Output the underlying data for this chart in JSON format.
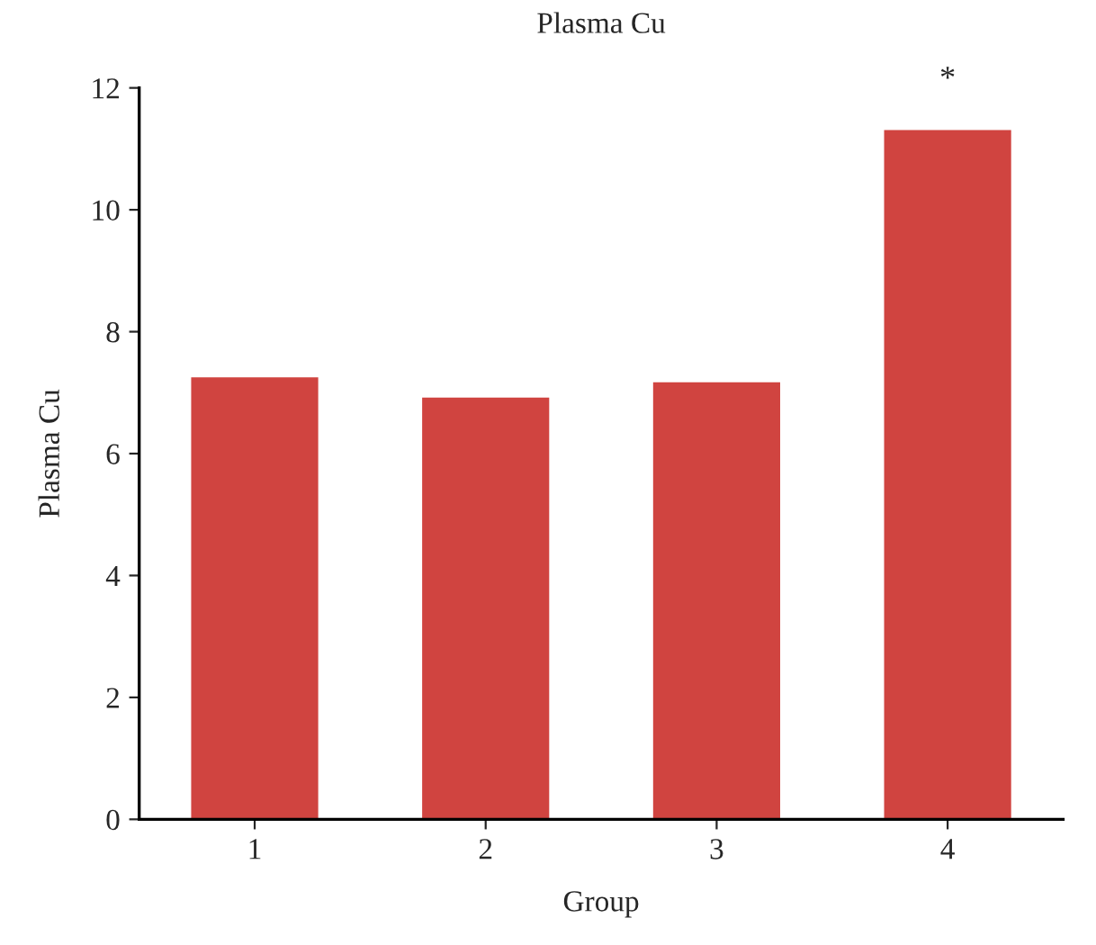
{
  "chart_data": {
    "type": "bar",
    "title": "Plasma Cu",
    "xlabel": "Group",
    "ylabel": "Plasma Cu",
    "categories": [
      "1",
      "2",
      "3",
      "4"
    ],
    "values": [
      7.25,
      6.92,
      7.17,
      11.31
    ],
    "color": "#d04440",
    "ylim": [
      0,
      12
    ],
    "yticks": [
      0,
      2,
      4,
      6,
      8,
      10,
      12
    ],
    "annotations": [
      {
        "text": "*",
        "x": "4",
        "y": 11.31
      }
    ]
  }
}
